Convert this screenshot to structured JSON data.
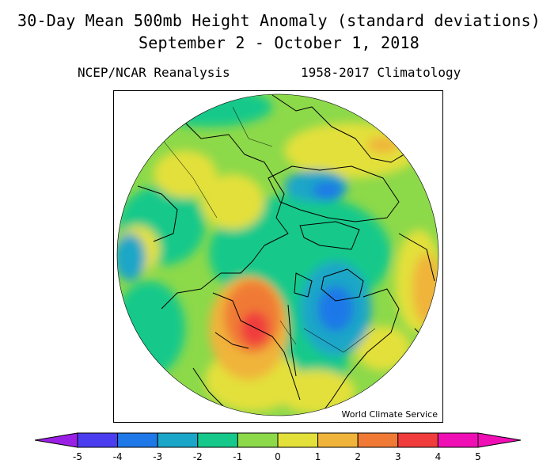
{
  "title": {
    "line1": "30-Day Mean 500mb Height Anomaly (standard deviations)",
    "line2": "September 2 - October 1, 2018"
  },
  "subtitle": {
    "left": "NCEP/NCAR Reanalysis",
    "right": "1958-2017 Climatology"
  },
  "map": {
    "projection": "north polar stereographic",
    "watermark": "World Climate Service"
  },
  "colorbar": {
    "tick_labels": [
      "-5",
      "-4",
      "-3",
      "-2",
      "-1",
      "0",
      "1",
      "2",
      "3",
      "4",
      "5"
    ],
    "colors": [
      "#9b20e6",
      "#4a3df0",
      "#1f78e8",
      "#1aa6c8",
      "#16c98a",
      "#8cd94a",
      "#e3e03a",
      "#f0b43a",
      "#f07a35",
      "#f03c3c",
      "#f00fb4"
    ],
    "left_end_color": "#9b20e6",
    "right_end_color": "#f00fb4"
  }
}
